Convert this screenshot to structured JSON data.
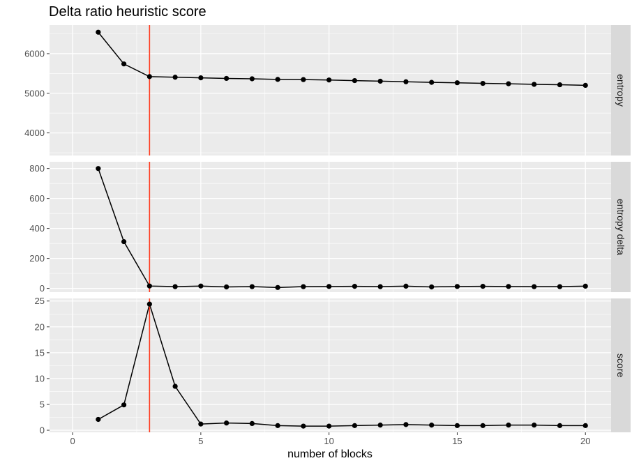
{
  "chart_data": {
    "type": "line",
    "title": "Delta ratio heuristic score",
    "xlabel": "number of blocks",
    "x_ticks": [
      0,
      5,
      10,
      15,
      20
    ],
    "xlim": [
      -0.9,
      21.0
    ],
    "marker_line": {
      "x": 3,
      "color": "#ff3b1f"
    },
    "line_color": "#000000",
    "panel_background": "#ebebeb",
    "strip_background": "#d9d9d9",
    "grid": true,
    "facets": [
      {
        "strip": "entropy",
        "ylim": [
          3430,
          6720
        ],
        "y_ticks": [
          4000,
          5000,
          6000
        ],
        "x": [
          1,
          2,
          3,
          4,
          5,
          6,
          7,
          8,
          9,
          10,
          11,
          12,
          13,
          14,
          15,
          16,
          17,
          18,
          19,
          20
        ],
        "values": [
          6540,
          5740,
          5420,
          5405,
          5390,
          5375,
          5365,
          5350,
          5345,
          5335,
          5320,
          5305,
          5290,
          5275,
          5265,
          5250,
          5240,
          5225,
          5215,
          5200
        ]
      },
      {
        "strip": "entropy delta",
        "ylim": [
          -25,
          845
        ],
        "y_ticks": [
          0,
          200,
          400,
          600,
          800
        ],
        "x": [
          1,
          2,
          3,
          4,
          5,
          6,
          7,
          8,
          9,
          10,
          11,
          12,
          13,
          14,
          15,
          16,
          17,
          18,
          19,
          20
        ],
        "values": [
          800,
          312,
          16,
          12,
          16,
          10,
          12,
          6,
          12,
          13,
          14,
          12,
          15,
          10,
          13,
          14,
          13,
          12,
          12,
          15
        ]
      },
      {
        "strip": "score",
        "ylim": [
          -0.4,
          25.5
        ],
        "y_ticks": [
          0,
          5,
          10,
          15,
          20,
          25
        ],
        "x": [
          1,
          2,
          3,
          4,
          5,
          6,
          7,
          8,
          9,
          10,
          11,
          12,
          13,
          14,
          15,
          16,
          17,
          18,
          19,
          20
        ],
        "values": [
          2.1,
          4.9,
          24.4,
          8.5,
          1.2,
          1.4,
          1.3,
          0.9,
          0.8,
          0.8,
          0.9,
          1.0,
          1.1,
          1.0,
          0.9,
          0.9,
          1.0,
          1.0,
          0.9,
          0.9
        ]
      }
    ]
  }
}
